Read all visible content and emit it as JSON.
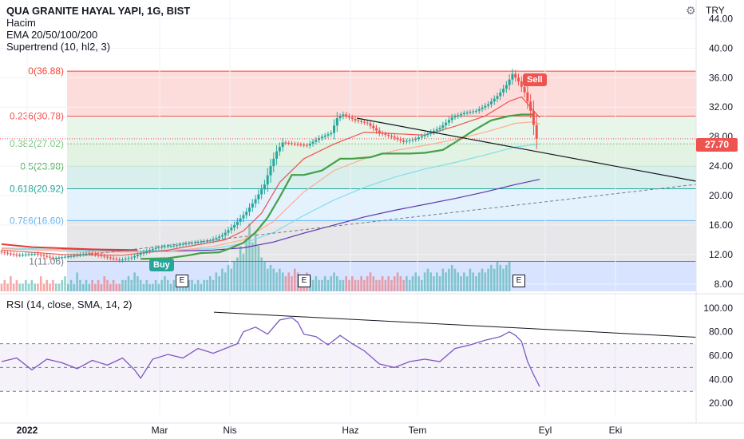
{
  "header": {
    "symbol_line": "QUA GRANITE HAYAL YAPI, 1G, BIST",
    "indicators": [
      "Hacim",
      "EMA 20/50/100/200",
      "Supertrend (10, hl2, 3)"
    ],
    "currency": "TRY",
    "last_price": "27.70"
  },
  "rsi_legend": "RSI (14, close, SMA, 14, 2)",
  "signals": {
    "buy": "Buy",
    "sell": "Sell"
  },
  "earnings_marker": "E",
  "fib_labels": [
    "0(36.88)",
    "0.236(30.78)",
    "0.382(27.02)",
    "0.5(23.98)",
    "0.618(20.92)",
    "0.786(16.60)",
    "1(11.06)"
  ],
  "colors": {
    "up": "#26a69a",
    "down": "#ef5350",
    "supertrend_up": "#43a047",
    "supertrend_down": "#e53935",
    "ema20": "#ef5350",
    "ema50": "#ffab91",
    "ema100": "#80deea",
    "ema200": "#5e35b1",
    "rsi": "#7e57c2",
    "fib0": "#f44336",
    "fib236": "#ef5350",
    "fib382": "#81c784",
    "fib5": "#4caf50",
    "fib618": "#26a69a",
    "fib786": "#64b5f6",
    "fib1": "#787b86"
  },
  "chart_data": {
    "type": "candlestick",
    "price_axis": {
      "ticks": [
        "8.00",
        "12.00",
        "16.00",
        "20.00",
        "24.00",
        "28.00",
        "32.00",
        "36.00",
        "40.00",
        "44.00"
      ],
      "range": [
        7,
        46
      ]
    },
    "rsi_axis": {
      "ticks": [
        "20.00",
        "40.00",
        "60.00",
        "80.00",
        "100.00"
      ],
      "range": [
        10,
        104
      ],
      "bands": [
        30,
        50,
        70
      ]
    },
    "x_axis_labels": [
      "2022",
      "Mar",
      "Nis",
      "Haz",
      "Tem",
      "Eyl",
      "Eki"
    ],
    "fib_levels": [
      36.88,
      30.78,
      27.02,
      23.98,
      20.92,
      16.6,
      11.06
    ],
    "price_path": [
      [
        0,
        12.4
      ],
      [
        6,
        11.9
      ],
      [
        12,
        12.1
      ],
      [
        18,
        11.5
      ],
      [
        24,
        11.8
      ],
      [
        30,
        12.2
      ],
      [
        35,
        11.7
      ],
      [
        40,
        11.2
      ],
      [
        44,
        11.6
      ],
      [
        48,
        12.3
      ],
      [
        52,
        12.9
      ],
      [
        55,
        13.1
      ],
      [
        58,
        13.2
      ],
      [
        62,
        13.5
      ],
      [
        66,
        13.7
      ],
      [
        70,
        13.9
      ],
      [
        74,
        14.6
      ],
      [
        78,
        16.0
      ],
      [
        82,
        17.8
      ],
      [
        85,
        19.5
      ],
      [
        88,
        21.5
      ],
      [
        90,
        24.0
      ],
      [
        92,
        26.0
      ],
      [
        94,
        27.2
      ],
      [
        98,
        27.0
      ],
      [
        102,
        26.8
      ],
      [
        106,
        27.8
      ],
      [
        110,
        28.5
      ],
      [
        112,
        30.5
      ],
      [
        114,
        31.0
      ],
      [
        118,
        30.2
      ],
      [
        122,
        29.8
      ],
      [
        126,
        28.5
      ],
      [
        130,
        28.0
      ],
      [
        134,
        27.3
      ],
      [
        138,
        27.7
      ],
      [
        142,
        28.4
      ],
      [
        146,
        29.2
      ],
      [
        150,
        30.6
      ],
      [
        154,
        31.2
      ],
      [
        158,
        31.5
      ],
      [
        162,
        32.4
      ],
      [
        165,
        33.5
      ],
      [
        168,
        35.0
      ],
      [
        170,
        36.5
      ],
      [
        172,
        35.5
      ],
      [
        174,
        34.0
      ],
      [
        176,
        31.5
      ],
      [
        178,
        27.7
      ]
    ],
    "ema20": [
      [
        0,
        12.6
      ],
      [
        20,
        12.0
      ],
      [
        40,
        11.9
      ],
      [
        55,
        12.6
      ],
      [
        66,
        13.4
      ],
      [
        74,
        14.0
      ],
      [
        80,
        15.2
      ],
      [
        86,
        17.6
      ],
      [
        92,
        21.8
      ],
      [
        100,
        25.0
      ],
      [
        110,
        27.0
      ],
      [
        120,
        28.6
      ],
      [
        130,
        28.4
      ],
      [
        140,
        28.2
      ],
      [
        150,
        29.4
      ],
      [
        160,
        30.8
      ],
      [
        168,
        32.8
      ],
      [
        172,
        33.4
      ],
      [
        176,
        31.5
      ],
      [
        178,
        30.6
      ]
    ],
    "ema50": [
      [
        0,
        12.8
      ],
      [
        30,
        12.3
      ],
      [
        55,
        12.4
      ],
      [
        70,
        13.1
      ],
      [
        80,
        14.0
      ],
      [
        90,
        16.5
      ],
      [
        100,
        20.5
      ],
      [
        110,
        23.4
      ],
      [
        120,
        25.0
      ],
      [
        130,
        26.1
      ],
      [
        140,
        26.8
      ],
      [
        150,
        27.6
      ],
      [
        160,
        28.6
      ],
      [
        170,
        29.8
      ],
      [
        176,
        30.0
      ],
      [
        178,
        29.7
      ]
    ],
    "ema100": [
      [
        0,
        12.9
      ],
      [
        40,
        12.4
      ],
      [
        70,
        12.8
      ],
      [
        80,
        13.5
      ],
      [
        90,
        15.0
      ],
      [
        100,
        17.3
      ],
      [
        110,
        19.4
      ],
      [
        120,
        21.1
      ],
      [
        130,
        22.5
      ],
      [
        140,
        23.6
      ],
      [
        150,
        24.5
      ],
      [
        160,
        25.5
      ],
      [
        170,
        26.6
      ],
      [
        178,
        27.0
      ]
    ],
    "ema200": [
      [
        20,
        12.7
      ],
      [
        50,
        12.4
      ],
      [
        70,
        12.6
      ],
      [
        80,
        12.9
      ],
      [
        90,
        13.7
      ],
      [
        100,
        14.9
      ],
      [
        110,
        16.0
      ],
      [
        120,
        17.1
      ],
      [
        130,
        18.0
      ],
      [
        140,
        18.8
      ],
      [
        150,
        19.6
      ],
      [
        160,
        20.5
      ],
      [
        170,
        21.5
      ],
      [
        178,
        22.2
      ]
    ],
    "supertrend": [
      [
        0,
        13.4
      ],
      [
        10,
        13.0
      ],
      [
        30,
        12.7
      ],
      [
        45,
        12.6
      ],
      [
        46,
        11.4
      ],
      [
        55,
        11.5
      ],
      [
        62,
        11.9
      ],
      [
        66,
        12.2
      ],
      [
        72,
        12.3
      ],
      [
        76,
        12.9
      ],
      [
        80,
        13.6
      ],
      [
        84,
        15.0
      ],
      [
        88,
        17.0
      ],
      [
        92,
        19.8
      ],
      [
        96,
        22.8
      ],
      [
        100,
        22.8
      ],
      [
        106,
        23.4
      ],
      [
        112,
        25.0
      ],
      [
        116,
        25.0
      ],
      [
        122,
        25.2
      ],
      [
        126,
        25.7
      ],
      [
        135,
        25.7
      ],
      [
        140,
        25.8
      ],
      [
        146,
        26.2
      ],
      [
        150,
        27.2
      ],
      [
        156,
        28.8
      ],
      [
        162,
        30.2
      ],
      [
        168,
        30.8
      ],
      [
        172,
        31.0
      ],
      [
        176,
        31.0
      ]
    ],
    "rsi": [
      [
        0,
        55
      ],
      [
        5,
        58
      ],
      [
        10,
        48
      ],
      [
        15,
        57
      ],
      [
        20,
        54
      ],
      [
        25,
        49
      ],
      [
        30,
        56
      ],
      [
        35,
        52
      ],
      [
        40,
        58
      ],
      [
        44,
        48
      ],
      [
        46,
        41
      ],
      [
        50,
        57
      ],
      [
        55,
        61
      ],
      [
        60,
        58
      ],
      [
        65,
        66
      ],
      [
        70,
        62
      ],
      [
        75,
        67
      ],
      [
        78,
        70
      ],
      [
        80,
        80
      ],
      [
        84,
        84
      ],
      [
        88,
        78
      ],
      [
        92,
        90
      ],
      [
        96,
        92
      ],
      [
        98,
        88
      ],
      [
        100,
        78
      ],
      [
        104,
        76
      ],
      [
        108,
        69
      ],
      [
        112,
        77
      ],
      [
        116,
        70
      ],
      [
        120,
        64
      ],
      [
        125,
        53
      ],
      [
        130,
        50
      ],
      [
        135,
        55
      ],
      [
        140,
        57
      ],
      [
        145,
        55
      ],
      [
        150,
        66
      ],
      [
        155,
        69
      ],
      [
        160,
        73
      ],
      [
        165,
        76
      ],
      [
        168,
        80
      ],
      [
        170,
        77
      ],
      [
        172,
        72
      ],
      [
        174,
        55
      ],
      [
        176,
        44
      ],
      [
        178,
        34
      ]
    ],
    "volume": [
      2,
      3,
      2,
      4,
      2,
      3,
      2,
      2,
      3,
      2,
      3,
      2,
      2,
      4,
      2,
      3,
      2,
      3,
      2,
      2,
      3,
      4,
      2,
      3,
      2,
      5,
      3,
      2,
      3,
      2,
      3,
      2,
      3,
      2,
      4,
      3,
      2,
      3,
      2,
      2,
      3,
      3,
      4,
      3,
      5,
      4,
      3,
      2,
      3,
      2,
      2,
      3,
      2,
      3,
      4,
      3,
      2,
      3,
      2,
      2,
      3,
      2,
      3,
      3,
      2,
      3,
      2,
      3,
      3,
      4,
      3,
      5,
      4,
      6,
      5,
      7,
      6,
      8,
      9,
      12,
      10,
      14,
      18,
      13,
      16,
      12,
      9,
      8,
      6,
      7,
      6,
      5,
      6,
      5,
      4,
      5,
      4,
      6,
      5,
      4,
      4,
      5,
      4,
      3,
      4,
      3,
      3,
      4,
      3,
      4,
      5,
      4,
      3,
      3,
      4,
      3,
      4,
      3,
      3,
      4,
      3,
      4,
      5,
      4,
      3,
      3,
      4,
      3,
      4,
      3,
      4,
      5,
      4,
      3,
      4,
      3,
      4,
      5,
      4,
      3,
      5,
      6,
      5,
      4,
      5,
      4,
      6,
      5,
      6,
      7,
      6,
      5,
      4,
      5,
      4,
      6,
      5,
      4,
      5,
      6,
      5,
      6,
      7,
      6,
      8,
      7,
      6,
      7,
      8
    ]
  }
}
